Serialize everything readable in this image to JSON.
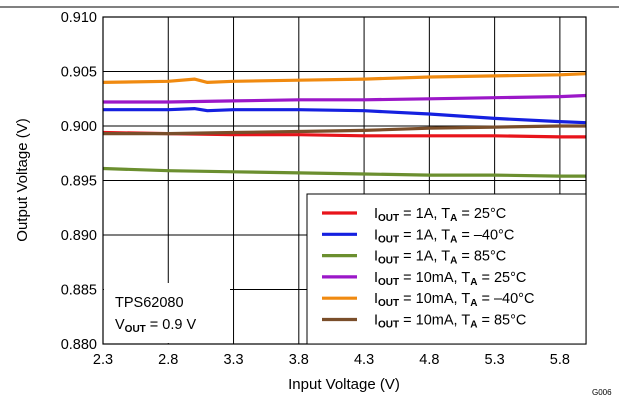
{
  "chart_data": {
    "type": "line",
    "xlabel": "Input Voltage (V)",
    "ylabel": "Output Voltage (V)",
    "xlim": [
      2.3,
      6.0
    ],
    "ylim": [
      0.88,
      0.91
    ],
    "xticks": [
      "2.3",
      "2.8",
      "3.3",
      "3.8",
      "4.3",
      "4.8",
      "5.3",
      "5.8"
    ],
    "yticks": [
      "0.880",
      "0.885",
      "0.890",
      "0.895",
      "0.900",
      "0.905",
      "0.910"
    ],
    "grid": true,
    "legend_position": "bottom-right",
    "figure_id": "G006",
    "annotation": {
      "line1": "TPS62080",
      "line2_main": "V",
      "line2_sub": "OUT",
      "line2_rest": " = 0.9 V"
    },
    "series": [
      {
        "name": "IOUT = 1A, TA = 25°C",
        "label": {
          "i": "I",
          "isub": "OUT",
          "mid": " = 1A, T",
          "tsub": "A",
          "tail": " = 25°C"
        },
        "color": "#e8141b",
        "x": [
          2.3,
          2.8,
          3.3,
          3.8,
          4.3,
          4.8,
          5.3,
          5.8,
          6.0
        ],
        "y": [
          0.8994,
          0.8993,
          0.8992,
          0.8992,
          0.8991,
          0.8991,
          0.8991,
          0.899,
          0.899
        ]
      },
      {
        "name": "IOUT = 1A, TA = -40°C",
        "label": {
          "i": "I",
          "isub": "OUT",
          "mid": " = 1A, T",
          "tsub": "A",
          "tail": " = –40°C"
        },
        "color": "#1520e0",
        "x": [
          2.3,
          2.8,
          3.0,
          3.1,
          3.3,
          3.8,
          4.3,
          4.8,
          5.3,
          5.8,
          6.0
        ],
        "y": [
          0.9015,
          0.9015,
          0.9016,
          0.9014,
          0.9015,
          0.9015,
          0.9014,
          0.9011,
          0.9007,
          0.9004,
          0.9003
        ]
      },
      {
        "name": "IOUT = 1A, TA = 85°C",
        "label": {
          "i": "I",
          "isub": "OUT",
          "mid": " = 1A, T",
          "tsub": "A",
          "tail": " = 85°C"
        },
        "color": "#6b8f2f",
        "x": [
          2.3,
          2.8,
          3.3,
          3.8,
          4.3,
          4.8,
          5.3,
          5.8,
          6.0
        ],
        "y": [
          0.8961,
          0.8959,
          0.8958,
          0.8957,
          0.8956,
          0.8955,
          0.8955,
          0.8954,
          0.8954
        ]
      },
      {
        "name": "IOUT = 10mA, TA = 25°C",
        "label": {
          "i": "I",
          "isub": "OUT",
          "mid": " = 10mA, T",
          "tsub": "A",
          "tail": " = 25°C"
        },
        "color": "#9b17c8",
        "x": [
          2.3,
          2.8,
          3.3,
          3.8,
          4.3,
          4.8,
          5.3,
          5.8,
          6.0
        ],
        "y": [
          0.9022,
          0.9022,
          0.9023,
          0.9024,
          0.9024,
          0.9025,
          0.9026,
          0.9027,
          0.9028
        ]
      },
      {
        "name": "IOUT = 10mA, TA = -40°C",
        "label": {
          "i": "I",
          "isub": "OUT",
          "mid": " = 10mA, T",
          "tsub": "A",
          "tail": " = –40°C"
        },
        "color": "#f08a10",
        "x": [
          2.3,
          2.8,
          3.0,
          3.1,
          3.3,
          3.8,
          4.3,
          4.8,
          5.3,
          5.8,
          6.0
        ],
        "y": [
          0.904,
          0.9041,
          0.9043,
          0.904,
          0.9041,
          0.9042,
          0.9043,
          0.9045,
          0.9046,
          0.9047,
          0.9048
        ]
      },
      {
        "name": "IOUT = 10mA, TA = 85°C",
        "label": {
          "i": "I",
          "isub": "OUT",
          "mid": " = 10mA, T",
          "tsub": "A",
          "tail": " = 85°C"
        },
        "color": "#7a4e2a",
        "x": [
          2.3,
          2.8,
          3.3,
          3.8,
          4.3,
          4.8,
          5.3,
          5.8,
          6.0
        ],
        "y": [
          0.8993,
          0.8993,
          0.8994,
          0.8995,
          0.8996,
          0.8998,
          0.8999,
          0.9,
          0.9
        ]
      }
    ]
  }
}
